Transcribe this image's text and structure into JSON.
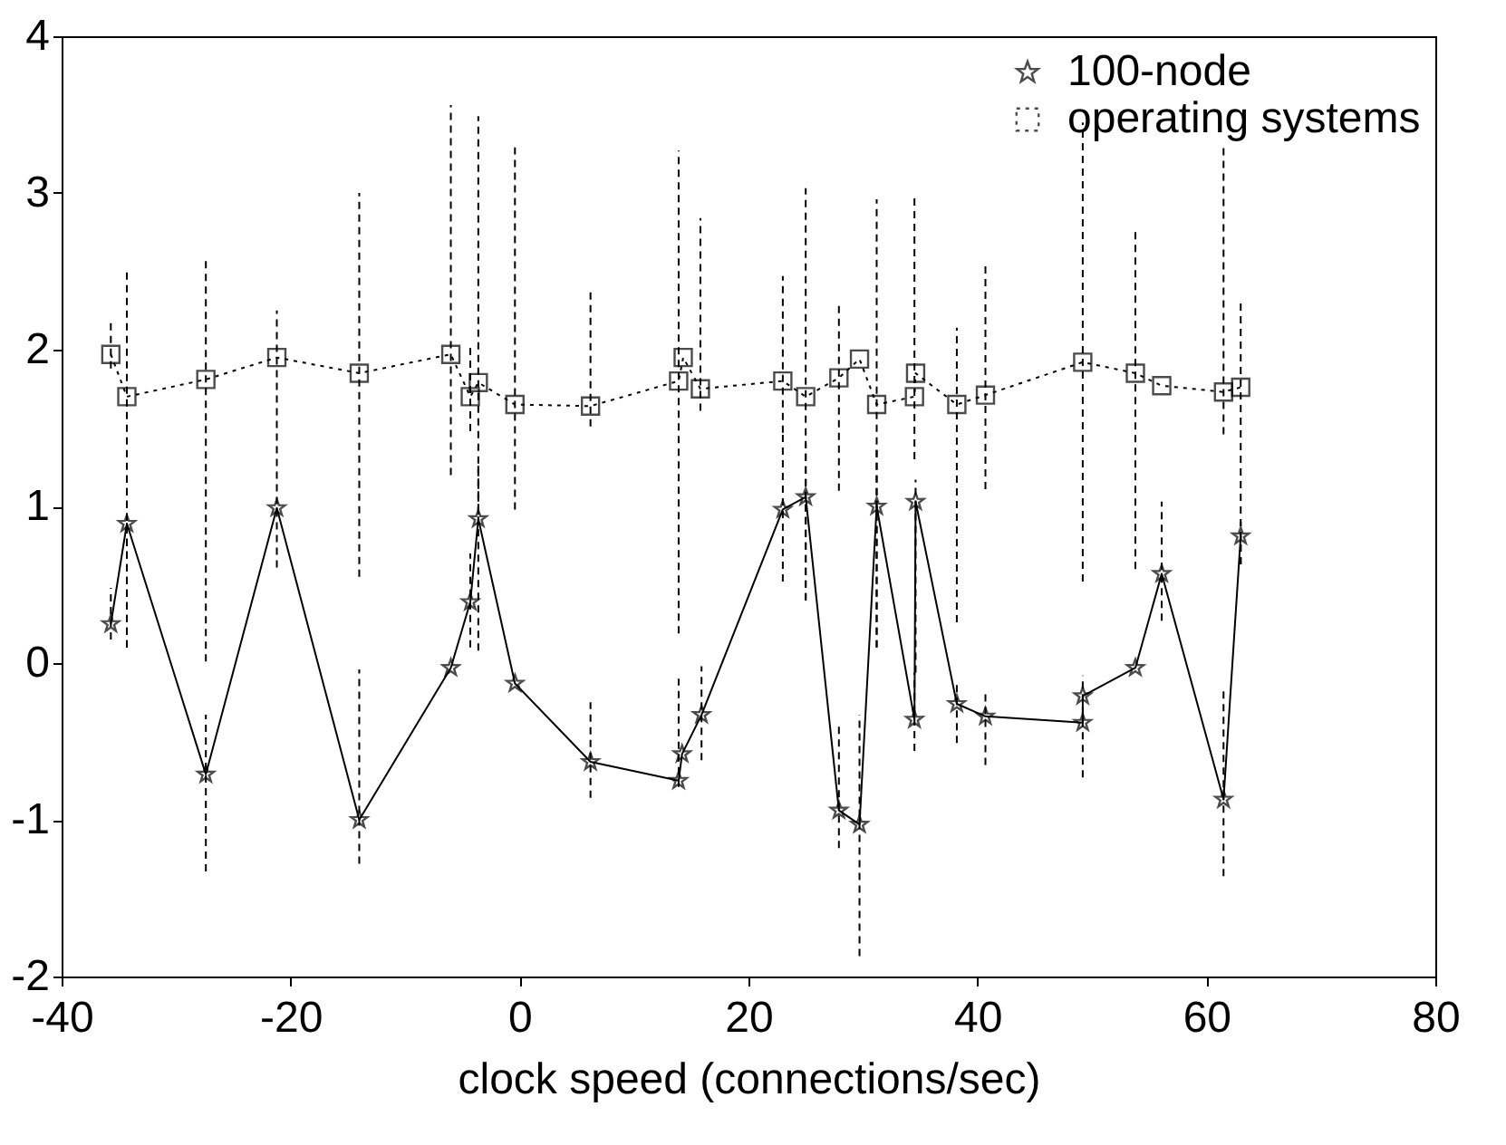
{
  "chart_data": {
    "type": "line",
    "xlabel": "clock speed (connections/sec)",
    "xlim": [
      -40,
      80
    ],
    "xticks": [
      -40,
      -20,
      0,
      20,
      40,
      60,
      80
    ],
    "ylim": [
      -2,
      4
    ],
    "yticks": [
      -2,
      -1,
      0,
      1,
      2,
      3,
      4
    ],
    "grid": false,
    "legend": "top right",
    "series": [
      {
        "name": "100-node",
        "color": "#000000",
        "line_style": "solid",
        "marker": "star",
        "x": [
          -35.7,
          -34.3,
          -27.4,
          -21.2,
          -14.0,
          -6.0,
          -4.3,
          -3.6,
          -0.4,
          6.2,
          13.9,
          14.2,
          15.9,
          23.0,
          25.0,
          27.9,
          29.7,
          31.2,
          34.5,
          34.6,
          38.2,
          40.7,
          49.2,
          49.2,
          53.8,
          56.1,
          61.5,
          63.0
        ],
        "values": [
          0.25,
          0.89,
          -0.71,
          0.99,
          -1.0,
          -0.03,
          0.39,
          0.92,
          -0.13,
          -0.63,
          -0.75,
          -0.58,
          -0.33,
          0.98,
          1.06,
          -0.94,
          -1.03,
          1.0,
          -0.36,
          1.03,
          -0.26,
          -0.34,
          -0.38,
          -0.21,
          -0.03,
          0.57,
          -0.87,
          0.81
        ],
        "errors": [
          [
            0.15,
            0.48
          ],
          [
            0.1,
            1.2
          ],
          [
            -1.33,
            -0.33
          ],
          null,
          [
            -1.28,
            -0.04
          ],
          null,
          [
            0.1,
            0.7
          ],
          [
            0.08,
            1.26
          ],
          null,
          [
            -0.86,
            -0.25
          ],
          [
            -0.79,
            -0.1
          ],
          null,
          [
            -0.62,
            -0.02
          ],
          [
            0.52,
            1.46
          ],
          [
            0.4,
            1.4
          ],
          [
            -1.18,
            -0.4
          ],
          [
            -1.87,
            -0.33
          ],
          [
            0.1,
            1.36
          ],
          [
            -0.56,
            -0.06
          ],
          [
            -0.06,
            1.17
          ],
          [
            -0.51,
            -0.11
          ],
          [
            -0.65,
            -0.18
          ],
          [
            -0.73,
            -0.08
          ],
          null,
          null,
          [
            0.27,
            1.03
          ],
          [
            -1.36,
            -0.18
          ],
          [
            0.63,
            0.9
          ]
        ]
      },
      {
        "name": "operating systems",
        "color": "#000000",
        "line_style": "dotted",
        "marker": "square",
        "x": [
          -35.7,
          -34.3,
          -27.4,
          -21.2,
          -14.0,
          -6.0,
          -4.3,
          -3.6,
          -0.4,
          6.2,
          13.9,
          14.3,
          15.8,
          23.0,
          25.0,
          27.9,
          29.7,
          31.2,
          34.5,
          34.6,
          38.2,
          40.7,
          49.2,
          53.8,
          56.1,
          61.5,
          63.0
        ],
        "values": [
          1.97,
          1.7,
          1.81,
          1.95,
          1.85,
          1.97,
          1.7,
          1.79,
          1.65,
          1.64,
          1.8,
          1.95,
          1.75,
          1.8,
          1.7,
          1.82,
          1.94,
          1.65,
          1.7,
          1.85,
          1.65,
          1.71,
          1.92,
          1.85,
          1.77,
          1.73,
          1.76
        ],
        "errors": [
          [
            1.88,
            2.17
          ],
          [
            0.1,
            2.52
          ],
          [
            0.01,
            2.6
          ],
          [
            0.61,
            2.25
          ],
          [
            0.55,
            3.0
          ],
          [
            1.2,
            3.56
          ],
          [
            1.48,
            2.02
          ],
          [
            0.95,
            3.49
          ],
          [
            0.98,
            3.29
          ],
          [
            1.51,
            2.38
          ],
          [
            0.19,
            3.27
          ],
          null,
          [
            1.61,
            2.84
          ],
          [
            1.47,
            2.47
          ],
          [
            0.4,
            3.03
          ],
          [
            1.1,
            2.31
          ],
          null,
          [
            0.1,
            2.96
          ],
          [
            1.3,
            2.97
          ],
          null,
          [
            0.26,
            2.14
          ],
          [
            1.11,
            2.56
          ],
          [
            0.52,
            3.45
          ],
          [
            0.6,
            2.78
          ],
          null,
          [
            1.46,
            3.31
          ],
          [
            0.63,
            2.32
          ]
        ]
      }
    ]
  }
}
